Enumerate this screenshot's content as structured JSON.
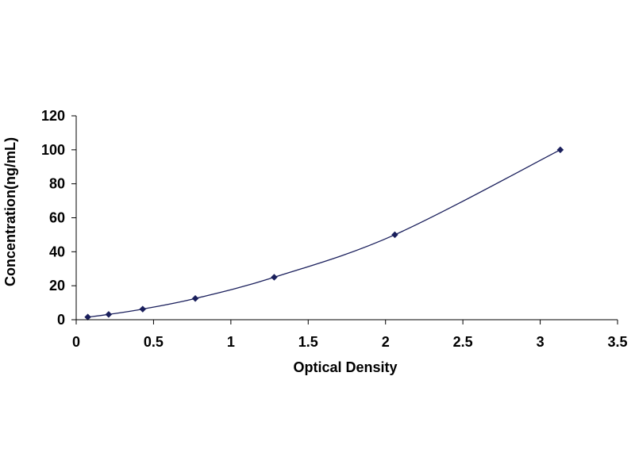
{
  "chart_data": {
    "type": "scatter",
    "title": "",
    "xlabel": "Optical Density",
    "ylabel": "Concentration(ng/mL)",
    "xlim": [
      0,
      3.5
    ],
    "ylim": [
      0,
      120
    ],
    "x_ticks": [
      0,
      0.5,
      1,
      1.5,
      2,
      2.5,
      3,
      3.5
    ],
    "x_tick_labels": [
      "0",
      "0.5",
      "1",
      "1.5",
      "2",
      "2.5",
      "3",
      "3.5"
    ],
    "y_ticks": [
      0,
      20,
      40,
      60,
      80,
      100,
      120
    ],
    "y_tick_labels": [
      "0",
      "20",
      "40",
      "60",
      "80",
      "100",
      "120"
    ],
    "grid": false,
    "legend": "none",
    "colors": {
      "marker": "#1a1f5c",
      "curve": "#1a1f5c",
      "axis": "#000000"
    },
    "series": [
      {
        "marker": "diamond",
        "trendline": "smooth",
        "x": [
          0.075,
          0.21,
          0.43,
          0.77,
          1.28,
          2.06,
          3.13
        ],
        "y": [
          1.56,
          3.12,
          6.25,
          12.5,
          25,
          50,
          100
        ]
      }
    ]
  }
}
